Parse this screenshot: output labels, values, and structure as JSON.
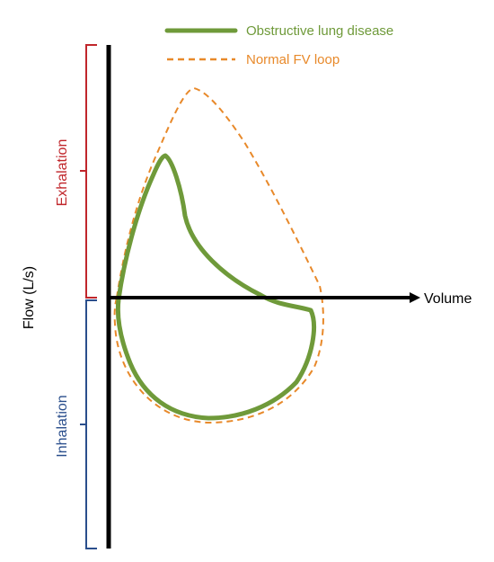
{
  "chart_data": {
    "type": "line",
    "xlabel": "Volume",
    "ylabel": "Flow (L/s)",
    "regions": {
      "upper": {
        "label": "Exhalation",
        "color": "#c0262b"
      },
      "lower": {
        "label": "Inhalation",
        "color": "#2a4e8c"
      }
    },
    "series": [
      {
        "name": "Obstructive lung disease",
        "color": "#6f9a3a",
        "style": "solid"
      },
      {
        "name": "Normal FV loop",
        "color": "#e8892a",
        "style": "dashed"
      }
    ]
  }
}
